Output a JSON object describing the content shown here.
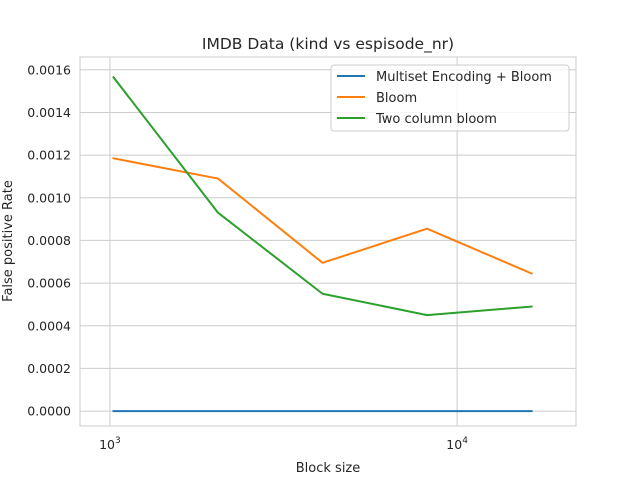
{
  "chart_data": {
    "type": "line",
    "title": "IMDB Data (kind vs espisode_nr)",
    "xlabel": "Block size",
    "ylabel": "False positive Rate",
    "xscale": "log",
    "xlim": [
      820,
      22000
    ],
    "ylim": [
      -7e-05,
      0.00166
    ],
    "grid": true,
    "legend_position": "top-right",
    "x": [
      1024,
      2048,
      4096,
      8192,
      16384
    ],
    "x_ticks": [
      {
        "value": 1000,
        "base": "10",
        "exp": "3"
      },
      {
        "value": 10000,
        "base": "10",
        "exp": "4"
      }
    ],
    "y_ticks": [
      {
        "value": 0.0,
        "label": "0.0000"
      },
      {
        "value": 0.0002,
        "label": "0.0002"
      },
      {
        "value": 0.0004,
        "label": "0.0004"
      },
      {
        "value": 0.0006,
        "label": "0.0006"
      },
      {
        "value": 0.0008,
        "label": "0.0008"
      },
      {
        "value": 0.001,
        "label": "0.0010"
      },
      {
        "value": 0.0012,
        "label": "0.0012"
      },
      {
        "value": 0.0014,
        "label": "0.0014"
      },
      {
        "value": 0.0016,
        "label": "0.0016"
      }
    ],
    "series": [
      {
        "name": "Multiset Encoding + Bloom",
        "color": "#1f77b4",
        "values": [
          0.0,
          0.0,
          0.0,
          0.0,
          0.0
        ]
      },
      {
        "name": "Bloom",
        "color": "#ff7f0e",
        "values": [
          0.001185,
          0.00109,
          0.000695,
          0.000855,
          0.000645
        ]
      },
      {
        "name": "Two column bloom",
        "color": "#2ca02c",
        "values": [
          0.001565,
          0.00093,
          0.00055,
          0.00045,
          0.00049
        ]
      }
    ]
  }
}
